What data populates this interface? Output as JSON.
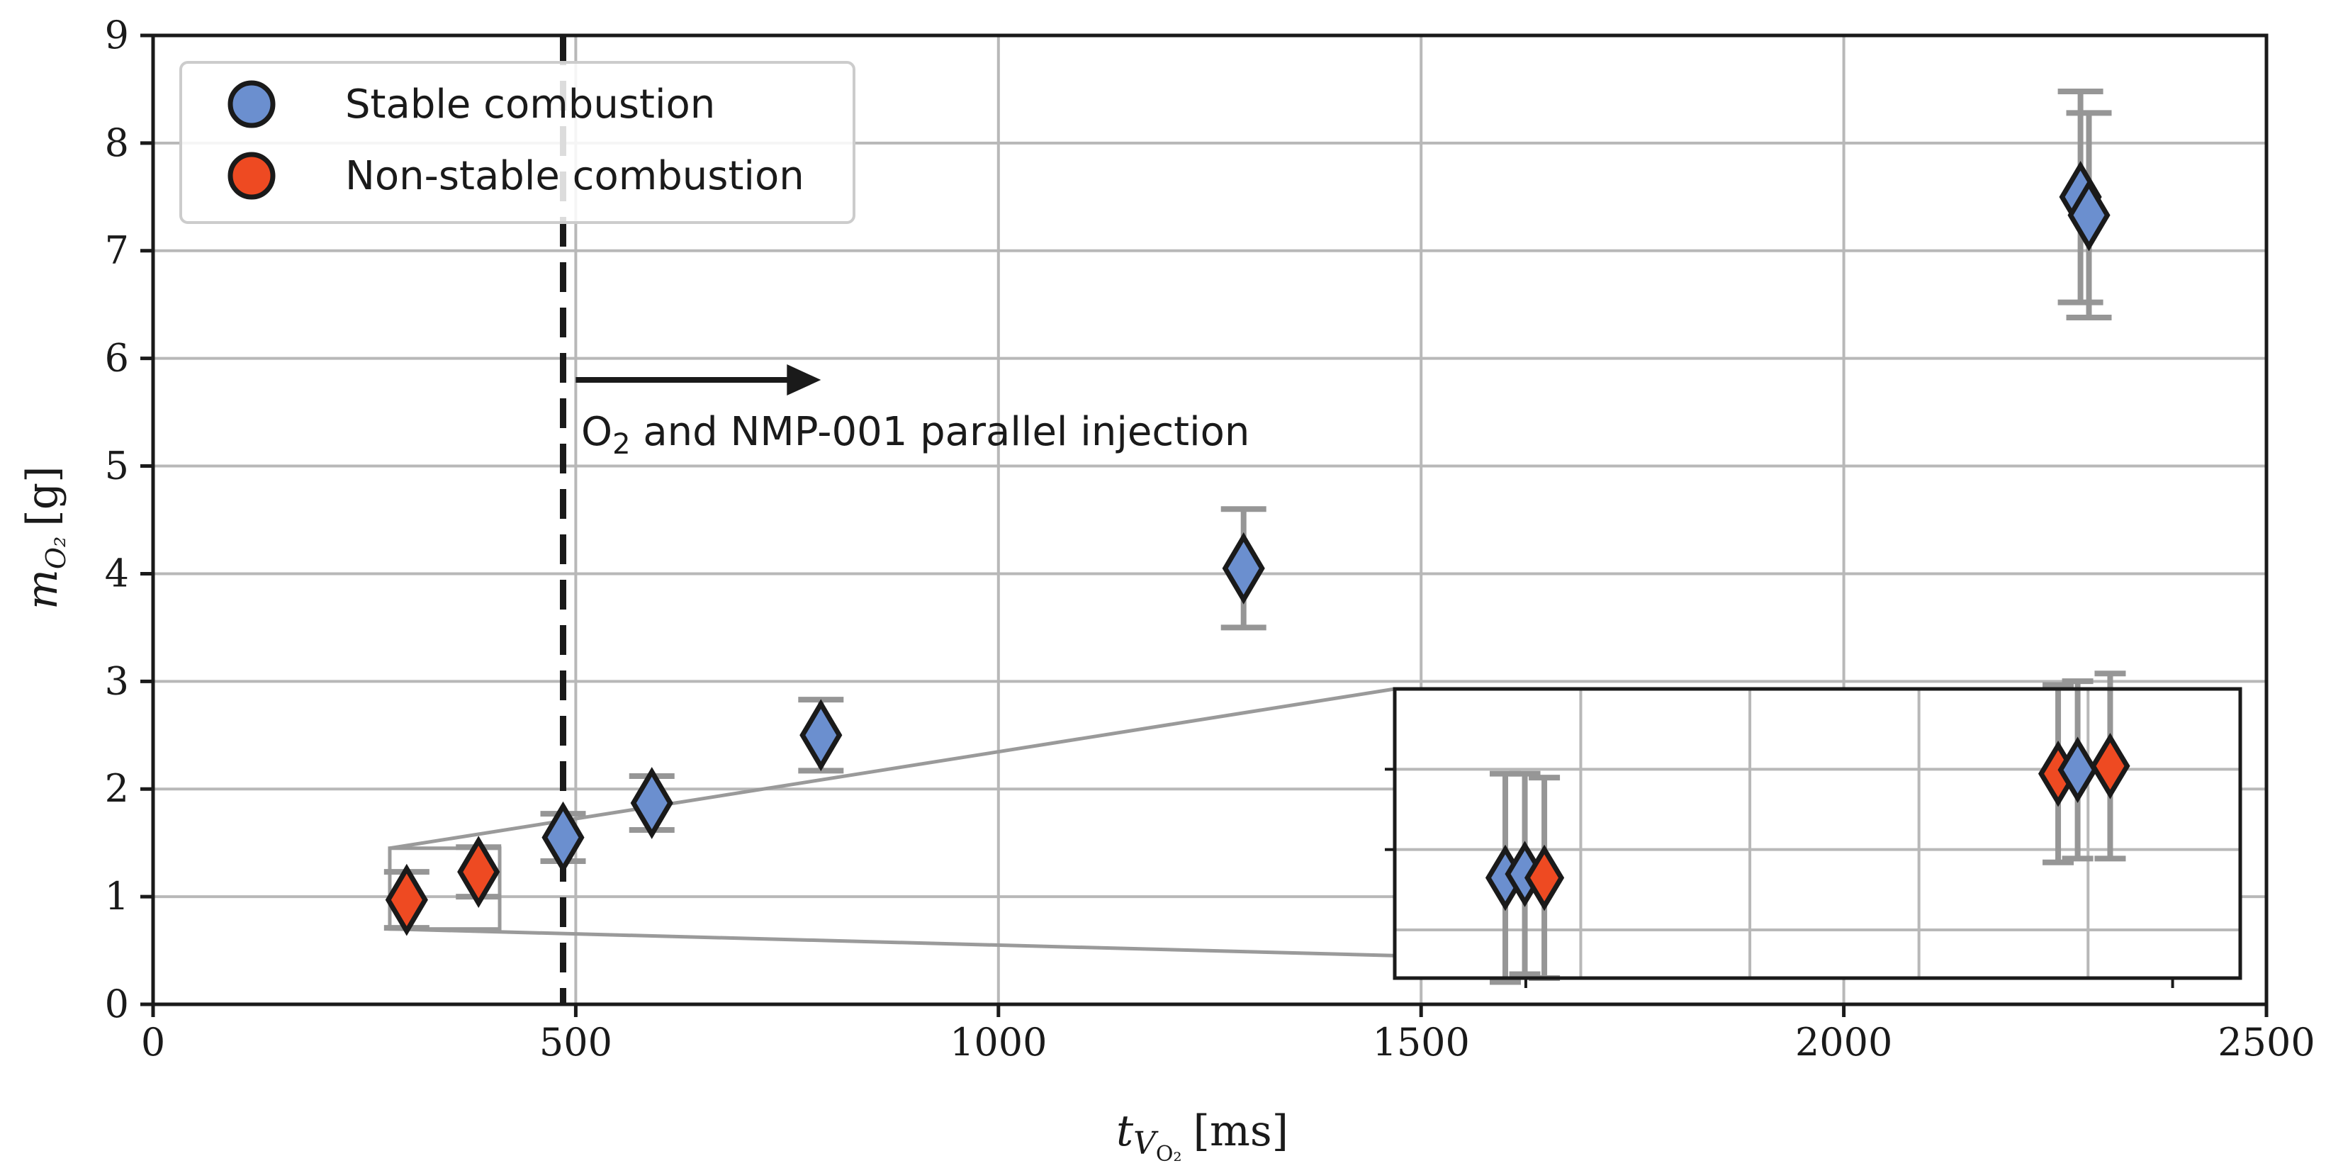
{
  "colors": {
    "stable": "#6b8fcf",
    "non_stable": "#ee4a22",
    "errorbar": "#969696",
    "grid": "#b8b8b8",
    "axes": "#1a1a1a",
    "connector": "#9a9a9a"
  },
  "chart_data": {
    "type": "scatter",
    "title": "",
    "xlabel_main": "t",
    "xlabel_sub": "V",
    "xlabel_subsub": "O₂",
    "xlabel_unit": "[ms]",
    "ylabel_main": "m",
    "ylabel_sub": "O₂",
    "ylabel_unit": "[g]",
    "xlim": [
      0,
      2500
    ],
    "ylim": [
      0,
      9
    ],
    "xticks": [
      0,
      500,
      1000,
      1500,
      2000,
      2500
    ],
    "xtick_labels": [
      "0",
      "500",
      "1000",
      "1500",
      "2000",
      "2500"
    ],
    "yticks": [
      0,
      1,
      2,
      3,
      4,
      5,
      6,
      7,
      8,
      9
    ],
    "ytick_labels": [
      "0",
      "1",
      "2",
      "3",
      "4",
      "5",
      "6",
      "7",
      "8",
      "9"
    ],
    "grid": true,
    "legend_position": "top-left",
    "series": [
      {
        "name": "Stable combustion",
        "color": "#6b8fcf",
        "points": [
          {
            "x": 485,
            "y": 1.55,
            "err": 0.22
          },
          {
            "x": 590,
            "y": 1.87,
            "err": 0.25
          },
          {
            "x": 790,
            "y": 2.5,
            "err": 0.33
          },
          {
            "x": 1290,
            "y": 4.05,
            "err": 0.55
          },
          {
            "x": 2280,
            "y": 7.5,
            "err": 0.98
          },
          {
            "x": 2290,
            "y": 7.33,
            "err": 0.95
          }
        ]
      },
      {
        "name": "Non-stable combustion",
        "color": "#ee4a22",
        "points": [
          {
            "x": 300,
            "y": 0.97,
            "err": 0.26
          },
          {
            "x": 385,
            "y": 1.23,
            "err": 0.23
          }
        ]
      }
    ],
    "annotations": {
      "vline_x": 485,
      "arrow_from_x": 500,
      "arrow_to_x": 790,
      "arrow_y": 5.8,
      "text_prefix": "O",
      "text_sub": "2",
      "text_rest": " and NMP-001 parallel injection"
    },
    "inset": {
      "zoom_region": {
        "x": [
          280,
          410
        ],
        "y": [
          0.7,
          1.45
        ]
      },
      "grid_lines": 4,
      "tick_marks": 2,
      "points": [
        {
          "series": "Stable combustion",
          "x": 297,
          "y": 0.96,
          "err": 0.27
        },
        {
          "series": "Stable combustion",
          "x": 300,
          "y": 0.97,
          "err": 0.26
        },
        {
          "series": "Non-stable combustion",
          "x": 303,
          "y": 0.96,
          "err": 0.26
        },
        {
          "series": "Non-stable combustion",
          "x": 382,
          "y": 1.23,
          "err": 0.23
        },
        {
          "series": "Stable combustion",
          "x": 385,
          "y": 1.24,
          "err": 0.23
        },
        {
          "series": "Non-stable combustion",
          "x": 390,
          "y": 1.25,
          "err": 0.24
        }
      ]
    }
  }
}
